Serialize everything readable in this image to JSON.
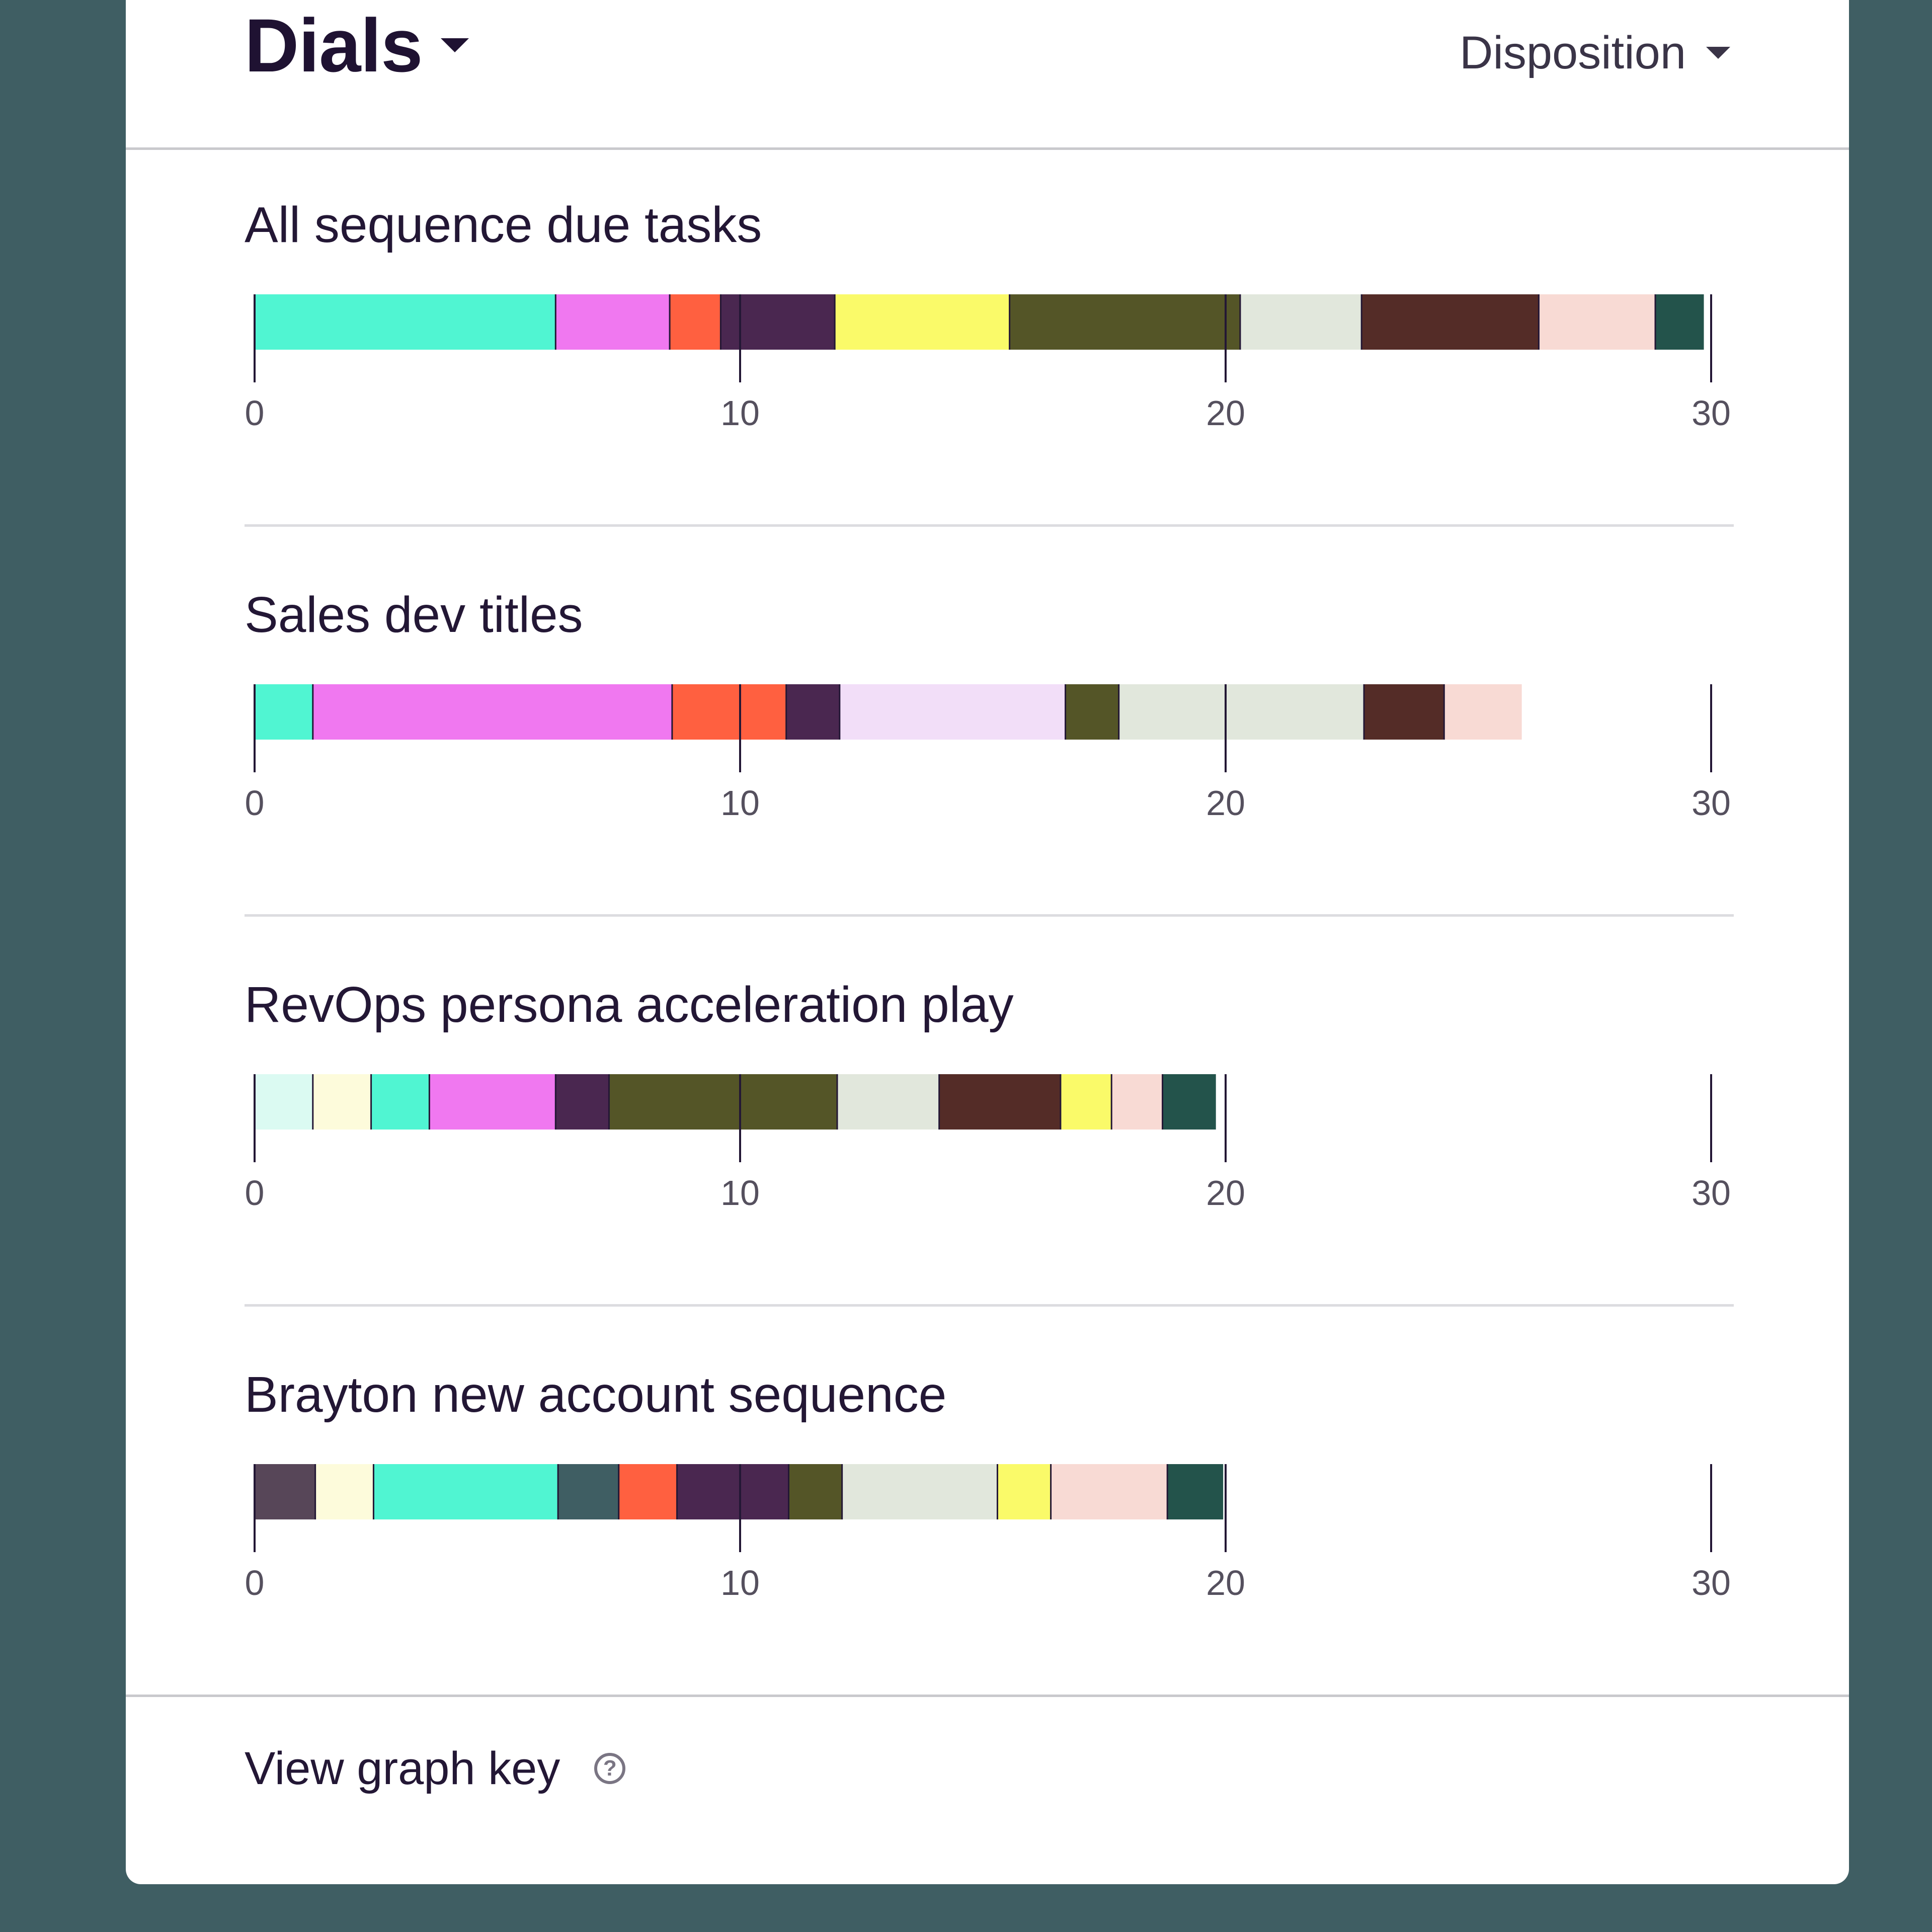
{
  "header": {
    "title": "Dials",
    "group_by": "Disposition"
  },
  "footer": {
    "graph_key_label": "View graph key",
    "help_icon": "?"
  },
  "colors": {
    "teal": "#50f5d2",
    "magenta": "#f078f0",
    "orange": "#ff6040",
    "plum": "#4a2750",
    "yellow": "#fafa69",
    "olive": "#545527",
    "sage": "#e1e7dc",
    "brown": "#542c27",
    "blush": "#f8dad4",
    "forest": "#23534b",
    "lavender": "#f2def8",
    "mint": "#dbfaf2",
    "cream": "#fdfbdb",
    "mauve": "#574658",
    "slate": "#3f5e63",
    "axis": "#231735"
  },
  "chart_data": [
    {
      "type": "bar",
      "orientation": "horizontal-stacked",
      "title": "All sequence due tasks",
      "xlim": [
        0,
        30
      ],
      "ticks": [
        0,
        10,
        20,
        30
      ],
      "segments": [
        {
          "color": "teal",
          "value": 6.2
        },
        {
          "color": "magenta",
          "value": 2.35
        },
        {
          "color": "orange",
          "value": 1.05
        },
        {
          "color": "plum",
          "value": 2.35
        },
        {
          "color": "yellow",
          "value": 3.6
        },
        {
          "color": "olive",
          "value": 4.75
        },
        {
          "color": "sage",
          "value": 2.5
        },
        {
          "color": "brown",
          "value": 3.65
        },
        {
          "color": "blush",
          "value": 2.4
        },
        {
          "color": "forest",
          "value": 1.0
        }
      ]
    },
    {
      "type": "bar",
      "orientation": "horizontal-stacked",
      "title": "Sales dev titles",
      "xlim": [
        0,
        30
      ],
      "ticks": [
        0,
        10,
        20,
        30
      ],
      "segments": [
        {
          "color": "teal",
          "value": 1.2
        },
        {
          "color": "magenta",
          "value": 7.4
        },
        {
          "color": "orange",
          "value": 2.35
        },
        {
          "color": "plum",
          "value": 1.1
        },
        {
          "color": "lavender",
          "value": 4.65
        },
        {
          "color": "olive",
          "value": 1.1
        },
        {
          "color": "sage",
          "value": 5.05
        },
        {
          "color": "brown",
          "value": 1.65
        },
        {
          "color": "blush",
          "value": 1.6
        }
      ]
    },
    {
      "type": "bar",
      "orientation": "horizontal-stacked",
      "title": "RevOps persona acceleration play",
      "xlim": [
        0,
        30
      ],
      "ticks": [
        0,
        10,
        20,
        30
      ],
      "segments": [
        {
          "color": "mint",
          "value": 1.2
        },
        {
          "color": "cream",
          "value": 1.2
        },
        {
          "color": "teal",
          "value": 1.2
        },
        {
          "color": "magenta",
          "value": 2.6
        },
        {
          "color": "plum",
          "value": 1.1
        },
        {
          "color": "olive",
          "value": 4.7
        },
        {
          "color": "sage",
          "value": 2.1
        },
        {
          "color": "brown",
          "value": 2.5
        },
        {
          "color": "yellow",
          "value": 1.05
        },
        {
          "color": "blush",
          "value": 1.05
        },
        {
          "color": "forest",
          "value": 1.1
        }
      ]
    },
    {
      "type": "bar",
      "orientation": "horizontal-stacked",
      "title": "Brayton new account sequence",
      "xlim": [
        0,
        30
      ],
      "ticks": [
        0,
        10,
        20,
        30
      ],
      "segments": [
        {
          "color": "mauve",
          "value": 1.25
        },
        {
          "color": "cream",
          "value": 1.2
        },
        {
          "color": "teal",
          "value": 3.8
        },
        {
          "color": "slate",
          "value": 1.25
        },
        {
          "color": "orange",
          "value": 1.2
        },
        {
          "color": "plum",
          "value": 2.3
        },
        {
          "color": "olive",
          "value": 1.1
        },
        {
          "color": "sage",
          "value": 3.2
        },
        {
          "color": "yellow",
          "value": 1.1
        },
        {
          "color": "blush",
          "value": 2.4
        },
        {
          "color": "forest",
          "value": 1.15
        }
      ]
    }
  ]
}
